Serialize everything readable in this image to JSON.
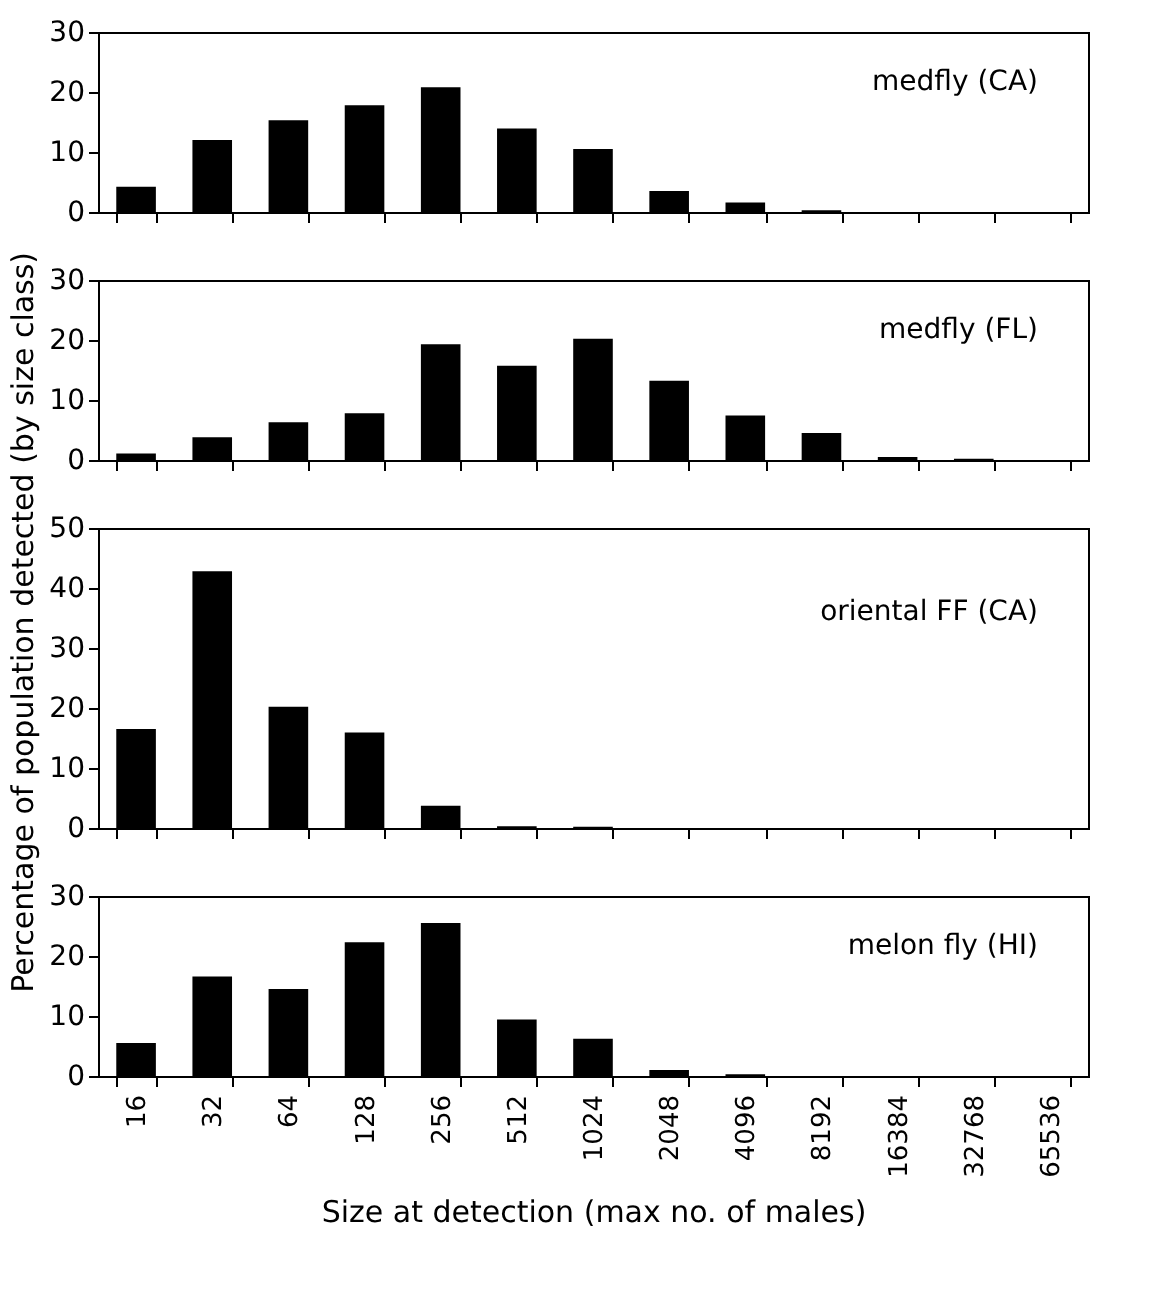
{
  "chart_data": [
    {
      "type": "bar",
      "title": "medfly (CA)",
      "categories": [
        "16",
        "32",
        "64",
        "128",
        "256",
        "512",
        "1024",
        "2048",
        "4096",
        "8192",
        "16384",
        "32768",
        "65536"
      ],
      "color": "#000000",
      "values": [
        4.2,
        12,
        15.3,
        17.8,
        20.8,
        13.9,
        10.5,
        3.5,
        1.6,
        0.3,
        0,
        0,
        0
      ],
      "ylim": [
        0,
        30
      ],
      "yticks": [
        0,
        10,
        20,
        30
      ],
      "tick_labels": "y"
    },
    {
      "type": "bar",
      "title": "medfly (FL)",
      "categories": [
        "16",
        "32",
        "64",
        "128",
        "256",
        "512",
        "1024",
        "2048",
        "4096",
        "8192",
        "16384",
        "32768",
        "65536"
      ],
      "color": "#000000",
      "values": [
        1.1,
        3.8,
        6.3,
        7.8,
        19.3,
        15.7,
        20.2,
        13.2,
        7.4,
        4.5,
        0.5,
        0.2,
        0
      ],
      "ylim": [
        0,
        30
      ],
      "yticks": [
        0,
        10,
        20,
        30
      ],
      "tick_labels": "y"
    },
    {
      "type": "bar",
      "title": "oriental FF (CA)",
      "ylabel": "Percentage of population detected (by size class)",
      "categories": [
        "16",
        "32",
        "64",
        "128",
        "256",
        "512",
        "1024",
        "2048",
        "4096",
        "8192",
        "16384",
        "32768",
        "65536"
      ],
      "color": "#000000",
      "values": [
        16.5,
        42.8,
        20.2,
        15.9,
        3.7,
        0.3,
        0.2,
        0,
        0,
        0,
        0,
        0,
        0
      ],
      "ylim": [
        0,
        50
      ],
      "yticks": [
        0,
        10,
        20,
        30,
        40,
        50
      ],
      "tick_labels": "y"
    },
    {
      "type": "bar",
      "title": "melon fly (HI)",
      "xlabel": "Size at detection (max no. of males)",
      "categories": [
        "16",
        "32",
        "64",
        "128",
        "256",
        "512",
        "1024",
        "2048",
        "4096",
        "8192",
        "16384",
        "32768",
        "65536"
      ],
      "color": "#000000",
      "values": [
        5.5,
        16.6,
        14.5,
        22.3,
        25.5,
        9.4,
        6.2,
        1.0,
        0.3,
        0,
        0,
        0,
        0
      ],
      "ylim": [
        0,
        30
      ],
      "yticks": [
        0,
        10,
        20,
        30
      ]
    }
  ]
}
